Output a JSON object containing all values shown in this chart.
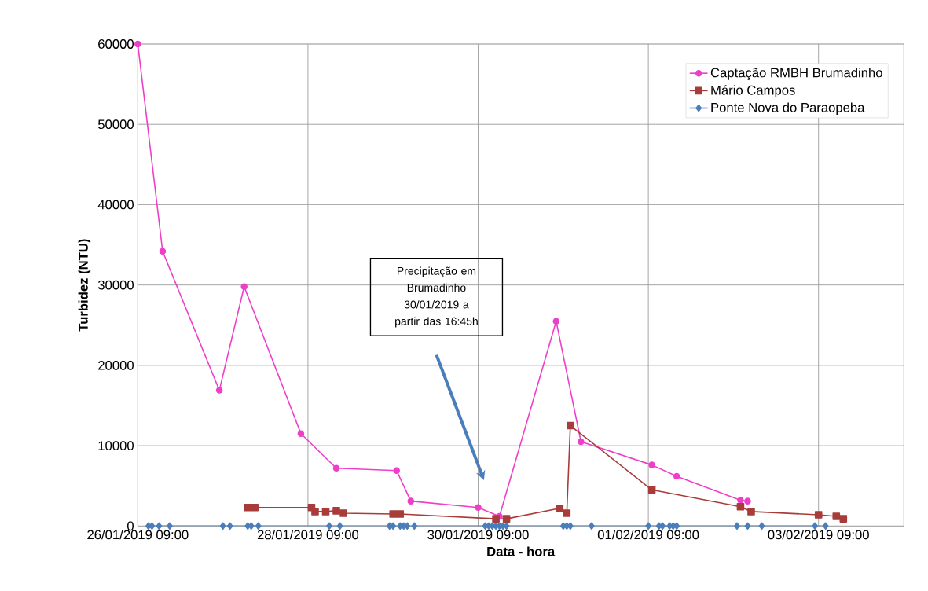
{
  "chart_data": {
    "type": "line",
    "xlabel": "Data - hora",
    "ylabel": "Turbidez (NTU)",
    "xlim": [
      "2019-01-26T09:00",
      "2019-02-04T09:00"
    ],
    "ylim": [
      0,
      60000
    ],
    "xticks": [
      {
        "value": "2019-01-26T09:00",
        "label": "26/01/2019 09:00"
      },
      {
        "value": "2019-01-28T09:00",
        "label": "28/01/2019 09:00"
      },
      {
        "value": "2019-01-30T09:00",
        "label": "30/01/2019 09:00"
      },
      {
        "value": "2019-02-01T09:00",
        "label": "01/02/2019 09:00"
      },
      {
        "value": "2019-02-03T09:00",
        "label": "03/02/2019 09:00"
      }
    ],
    "yticks": [
      0,
      10000,
      20000,
      30000,
      40000,
      50000,
      60000
    ],
    "grid": true,
    "legend": "top right",
    "annotations": [
      "Precipitação em Brumadinho 30/01/2019 a partir das 16:45h"
    ],
    "series": [
      {
        "name": "Captação RMBH Brumadinho",
        "color": "#ee3fc9",
        "marker": "circle",
        "x": [
          "2019-01-26T09:00",
          "2019-01-26T16:00",
          "2019-01-27T08:00",
          "2019-01-27T15:00",
          "2019-01-28T07:00",
          "2019-01-28T17:00",
          "2019-01-29T10:00",
          "2019-01-29T14:00",
          "2019-01-30T09:00",
          "2019-01-30T15:00",
          "2019-01-31T07:00",
          "2019-01-31T14:00",
          "2019-02-01T10:00",
          "2019-02-01T17:00",
          "2019-02-02T11:00",
          "2019-02-02T13:00"
        ],
        "values": [
          60000,
          34200,
          16900,
          29800,
          11500,
          7200,
          6900,
          3100,
          2300,
          1200,
          25500,
          10500,
          7600,
          6200,
          3200,
          3100
        ]
      },
      {
        "name": "Mário Campos",
        "color": "#a83c3a",
        "marker": "square",
        "x": [
          "2019-01-27T16:00",
          "2019-01-27T18:00",
          "2019-01-28T10:00",
          "2019-01-28T11:00",
          "2019-01-28T14:00",
          "2019-01-28T17:00",
          "2019-01-28T19:00",
          "2019-01-29T09:00",
          "2019-01-29T11:00",
          "2019-01-30T14:00",
          "2019-01-30T17:00",
          "2019-01-31T08:00",
          "2019-01-31T10:00",
          "2019-01-31T11:00",
          "2019-02-01T10:00",
          "2019-02-02T11:00",
          "2019-02-02T14:00",
          "2019-02-03T09:00",
          "2019-02-03T14:00",
          "2019-02-03T16:00"
        ],
        "values": [
          2300,
          2300,
          2300,
          1800,
          1800,
          1900,
          1600,
          1500,
          1500,
          900,
          900,
          2200,
          1600,
          12500,
          4500,
          2400,
          1800,
          1400,
          1200,
          900
        ]
      },
      {
        "name": "Ponte Nova do Paraopeba",
        "color": "#4a7ebb",
        "marker": "diamond",
        "x": [
          "2019-01-26T12:00",
          "2019-01-26T13:00",
          "2019-01-26T15:00",
          "2019-01-26T18:00",
          "2019-01-27T09:00",
          "2019-01-27T11:00",
          "2019-01-27T16:00",
          "2019-01-27T17:00",
          "2019-01-27T19:00",
          "2019-01-28T15:00",
          "2019-01-28T18:00",
          "2019-01-29T08:00",
          "2019-01-29T09:00",
          "2019-01-29T11:00",
          "2019-01-29T12:00",
          "2019-01-29T13:00",
          "2019-01-29T15:00",
          "2019-01-30T11:00",
          "2019-01-30T12:00",
          "2019-01-30T13:00",
          "2019-01-30T14:00",
          "2019-01-30T15:00",
          "2019-01-30T16:00",
          "2019-01-30T17:00",
          "2019-01-31T09:00",
          "2019-01-31T10:00",
          "2019-01-31T11:00",
          "2019-01-31T17:00",
          "2019-02-01T09:00",
          "2019-02-01T12:00",
          "2019-02-01T13:00",
          "2019-02-01T15:00",
          "2019-02-01T16:00",
          "2019-02-01T17:00",
          "2019-02-02T10:00",
          "2019-02-02T13:00",
          "2019-02-02T17:00",
          "2019-02-03T08:00",
          "2019-02-03T11:00"
        ],
        "values": [
          0,
          0,
          0,
          0,
          0,
          0,
          0,
          0,
          0,
          0,
          0,
          0,
          0,
          0,
          0,
          0,
          0,
          0,
          0,
          0,
          0,
          0,
          0,
          0,
          0,
          0,
          0,
          0,
          0,
          0,
          0,
          0,
          0,
          0,
          0,
          0,
          0,
          0,
          0
        ]
      }
    ]
  }
}
